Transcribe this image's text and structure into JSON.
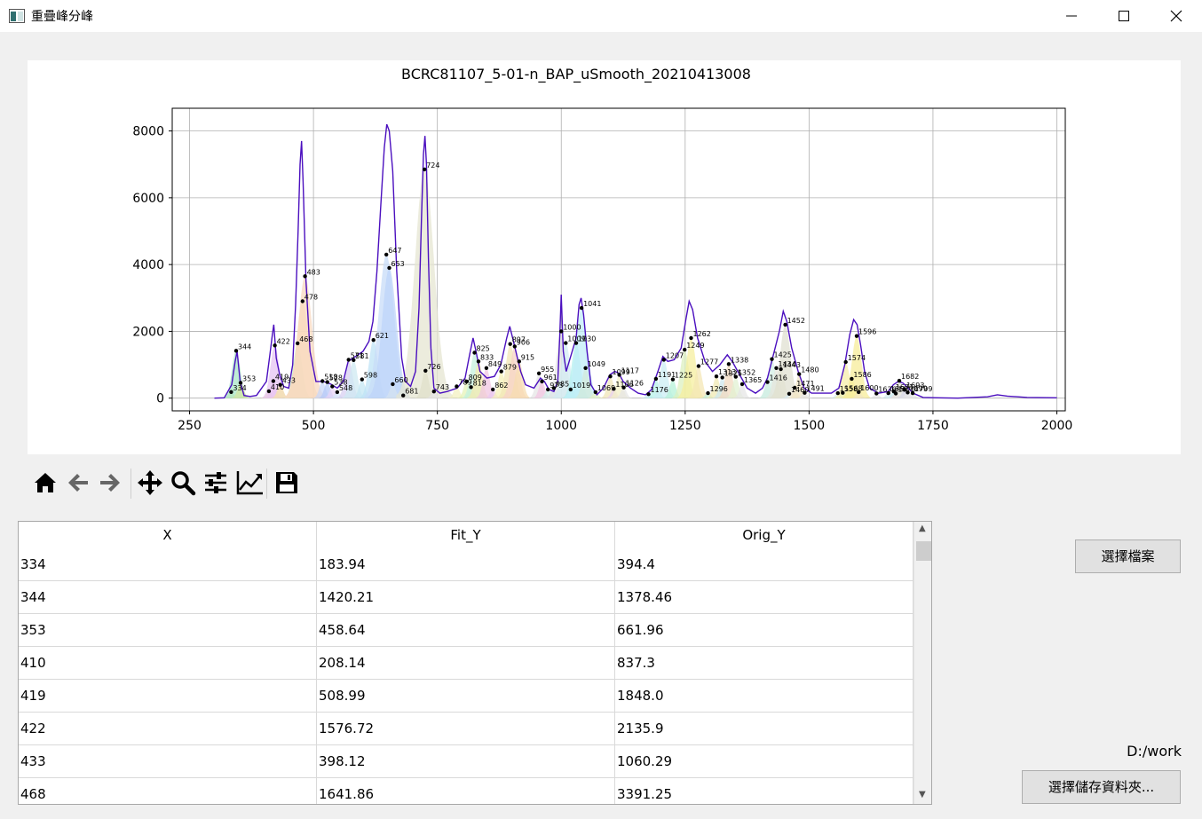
{
  "window": {
    "title": "重疊峰分峰",
    "icon": "app-window-icon",
    "controls": [
      "minimize-icon",
      "maximize-icon",
      "close-icon"
    ]
  },
  "plot": {
    "title": "BCRC81107_5-01-n_BAP_uSmooth_20210413008",
    "xlim": [
      215,
      2017
    ],
    "ylim": [
      -380,
      8680
    ],
    "xticks": [
      250,
      500,
      750,
      1000,
      1250,
      1500,
      1750,
      2000
    ],
    "yticks": [
      0,
      2000,
      4000,
      6000,
      8000
    ],
    "grid": true,
    "curve_color": "#4b0fbf",
    "spectrum": [
      [
        300,
        0
      ],
      [
        320,
        10
      ],
      [
        335,
        400
      ],
      [
        342,
        1100
      ],
      [
        346,
        1400
      ],
      [
        352,
        500
      ],
      [
        360,
        80
      ],
      [
        372,
        50
      ],
      [
        385,
        80
      ],
      [
        405,
        500
      ],
      [
        412,
        1300
      ],
      [
        417,
        1900
      ],
      [
        420,
        2200
      ],
      [
        425,
        1200
      ],
      [
        432,
        700
      ],
      [
        440,
        350
      ],
      [
        450,
        300
      ],
      [
        458,
        1000
      ],
      [
        464,
        2800
      ],
      [
        469,
        5000
      ],
      [
        473,
        7000
      ],
      [
        476,
        7700
      ],
      [
        479,
        6500
      ],
      [
        485,
        3500
      ],
      [
        493,
        1400
      ],
      [
        505,
        500
      ],
      [
        520,
        500
      ],
      [
        535,
        420
      ],
      [
        548,
        300
      ],
      [
        560,
        500
      ],
      [
        570,
        1100
      ],
      [
        580,
        1200
      ],
      [
        590,
        1300
      ],
      [
        600,
        1400
      ],
      [
        612,
        1700
      ],
      [
        620,
        2300
      ],
      [
        628,
        3800
      ],
      [
        636,
        5800
      ],
      [
        643,
        7500
      ],
      [
        648,
        8200
      ],
      [
        653,
        8000
      ],
      [
        660,
        6800
      ],
      [
        668,
        3800
      ],
      [
        678,
        1200
      ],
      [
        686,
        500
      ],
      [
        696,
        350
      ],
      [
        706,
        800
      ],
      [
        713,
        2700
      ],
      [
        718,
        5400
      ],
      [
        722,
        7300
      ],
      [
        725,
        7850
      ],
      [
        728,
        7000
      ],
      [
        732,
        4200
      ],
      [
        737,
        1500
      ],
      [
        743,
        300
      ],
      [
        755,
        150
      ],
      [
        770,
        200
      ],
      [
        790,
        300
      ],
      [
        806,
        600
      ],
      [
        815,
        1300
      ],
      [
        822,
        1800
      ],
      [
        828,
        1400
      ],
      [
        836,
        800
      ],
      [
        850,
        600
      ],
      [
        865,
        650
      ],
      [
        878,
        1000
      ],
      [
        890,
        1800
      ],
      [
        896,
        2150
      ],
      [
        902,
        1800
      ],
      [
        910,
        1300
      ],
      [
        918,
        800
      ],
      [
        928,
        400
      ],
      [
        945,
        300
      ],
      [
        958,
        600
      ],
      [
        966,
        500
      ],
      [
        975,
        260
      ],
      [
        985,
        200
      ],
      [
        993,
        500
      ],
      [
        997,
        1900
      ],
      [
        1000,
        3100
      ],
      [
        1004,
        1400
      ],
      [
        1010,
        800
      ],
      [
        1020,
        1300
      ],
      [
        1030,
        1800
      ],
      [
        1036,
        2800
      ],
      [
        1040,
        3000
      ],
      [
        1045,
        2500
      ],
      [
        1052,
        1400
      ],
      [
        1060,
        400
      ],
      [
        1072,
        100
      ],
      [
        1085,
        300
      ],
      [
        1098,
        700
      ],
      [
        1108,
        800
      ],
      [
        1116,
        750
      ],
      [
        1125,
        500
      ],
      [
        1140,
        300
      ],
      [
        1155,
        150
      ],
      [
        1170,
        100
      ],
      [
        1182,
        250
      ],
      [
        1195,
        800
      ],
      [
        1205,
        1250
      ],
      [
        1215,
        1100
      ],
      [
        1228,
        1150
      ],
      [
        1242,
        1500
      ],
      [
        1252,
        2400
      ],
      [
        1258,
        2900
      ],
      [
        1265,
        2650
      ],
      [
        1275,
        1800
      ],
      [
        1290,
        1100
      ],
      [
        1305,
        800
      ],
      [
        1320,
        1000
      ],
      [
        1335,
        1300
      ],
      [
        1345,
        1100
      ],
      [
        1360,
        700
      ],
      [
        1375,
        300
      ],
      [
        1392,
        150
      ],
      [
        1406,
        300
      ],
      [
        1416,
        600
      ],
      [
        1428,
        1300
      ],
      [
        1440,
        2000
      ],
      [
        1448,
        2600
      ],
      [
        1455,
        2300
      ],
      [
        1465,
        1500
      ],
      [
        1478,
        800
      ],
      [
        1490,
        300
      ],
      [
        1505,
        150
      ],
      [
        1525,
        150
      ],
      [
        1545,
        150
      ],
      [
        1560,
        300
      ],
      [
        1572,
        1000
      ],
      [
        1582,
        1900
      ],
      [
        1590,
        2350
      ],
      [
        1597,
        2200
      ],
      [
        1604,
        1600
      ],
      [
        1612,
        800
      ],
      [
        1622,
        300
      ],
      [
        1640,
        150
      ],
      [
        1660,
        200
      ],
      [
        1670,
        400
      ],
      [
        1680,
        500
      ],
      [
        1690,
        450
      ],
      [
        1700,
        300
      ],
      [
        1710,
        150
      ],
      [
        1730,
        20
      ],
      [
        1760,
        10
      ],
      [
        1800,
        0
      ],
      [
        1860,
        40
      ],
      [
        1880,
        100
      ],
      [
        1900,
        60
      ],
      [
        1940,
        20
      ],
      [
        2000,
        10
      ]
    ],
    "peaks": [
      [
        334,
        184,
        "#e2e8a6"
      ],
      [
        344,
        1420,
        "#a8e6c7"
      ],
      [
        353,
        459,
        "#d3e6a0"
      ],
      [
        410,
        208,
        "#f6e9a1"
      ],
      [
        419,
        509,
        "#f2c6e8"
      ],
      [
        422,
        1577,
        "#e5c4f3"
      ],
      [
        433,
        398,
        "#f5e3a5"
      ],
      [
        468,
        1642,
        "#b9f0c9"
      ],
      [
        478,
        2900,
        "#f8ddb5"
      ],
      [
        483,
        3650,
        "#f8d8c0"
      ],
      [
        518,
        510,
        "#c9d7f8"
      ],
      [
        528,
        480,
        "#b5c8f7"
      ],
      [
        538,
        350,
        "#e7d3f5"
      ],
      [
        548,
        180,
        "#d4e7f9"
      ],
      [
        571,
        1150,
        "#d8d0f1"
      ],
      [
        581,
        1140,
        "#cfe9f1"
      ],
      [
        598,
        560,
        "#c4e7f3"
      ],
      [
        621,
        1740,
        "#bfe3f5"
      ],
      [
        647,
        4300,
        "#c8dcf8"
      ],
      [
        653,
        3900,
        "#bed4f9"
      ],
      [
        660,
        420,
        "#d4e2f0"
      ],
      [
        681,
        80,
        "#e6e6e6"
      ],
      [
        724,
        6850,
        "#e6e6d2"
      ],
      [
        726,
        820,
        "#e0e0c9"
      ],
      [
        743,
        200,
        "#e6e6e6"
      ],
      [
        789,
        350,
        "#f3f0c0"
      ],
      [
        809,
        500,
        "#e6f3b8"
      ],
      [
        818,
        330,
        "#d4f0c6"
      ],
      [
        825,
        1360,
        "#c6f2de"
      ],
      [
        833,
        1100,
        "#f4e9b0"
      ],
      [
        849,
        900,
        "#f0c6e2"
      ],
      [
        862,
        260,
        "#e9c8f0"
      ],
      [
        879,
        800,
        "#f6f2b8"
      ],
      [
        897,
        1620,
        "#f1e5b5"
      ],
      [
        906,
        1550,
        "#f7d3c7"
      ],
      [
        915,
        1100,
        "#f7dcb0"
      ],
      [
        955,
        740,
        "#e6e6e6"
      ],
      [
        961,
        500,
        "#f3c7e3"
      ],
      [
        973,
        260,
        "#d2f0ea"
      ],
      [
        985,
        300,
        "#c7ecf7"
      ],
      [
        1000,
        2000,
        "#e6e6e6"
      ],
      [
        1009,
        1650,
        "#d3ecf3"
      ],
      [
        1019,
        260,
        "#c0f3f1"
      ],
      [
        1030,
        1650,
        "#b4f0ef"
      ],
      [
        1041,
        2700,
        "#c2edf8"
      ],
      [
        1049,
        900,
        "#d2eadb"
      ],
      [
        1069,
        180,
        "#e5f1c3"
      ],
      [
        1099,
        650,
        "#f0e6b8"
      ],
      [
        1106,
        280,
        "#e9d2f0"
      ],
      [
        1117,
        700,
        "#f3f0c5"
      ],
      [
        1126,
        320,
        "#e6e6e6"
      ],
      [
        1176,
        120,
        "#c9ecf5"
      ],
      [
        1191,
        580,
        "#b7f2ea"
      ],
      [
        1207,
        1150,
        "#ccedf4"
      ],
      [
        1225,
        560,
        "#b5f2d8"
      ],
      [
        1249,
        1450,
        "#dcf0c0"
      ],
      [
        1262,
        1800,
        "#f6ef9f"
      ],
      [
        1277,
        960,
        "#f4e7b5"
      ],
      [
        1296,
        150,
        "#c3efd9"
      ],
      [
        1313,
        650,
        "#f0e9b4"
      ],
      [
        1325,
        620,
        "#cfe8ef"
      ],
      [
        1338,
        1020,
        "#f2d9c0"
      ],
      [
        1352,
        640,
        "#e2f1d3"
      ],
      [
        1365,
        420,
        "#e6e6e6"
      ],
      [
        1416,
        480,
        "#c5ecdd"
      ],
      [
        1425,
        1170,
        "#d4efe6"
      ],
      [
        1434,
        900,
        "#e5e5dc"
      ],
      [
        1443,
        870,
        "#e8e8d4"
      ],
      [
        1452,
        2200,
        "#e0e0d1"
      ],
      [
        1460,
        130,
        "#d7ecf5"
      ],
      [
        1471,
        310,
        "#f4e9d5"
      ],
      [
        1480,
        720,
        "#f0e6c5"
      ],
      [
        1491,
        160,
        "#e6e6e6"
      ],
      [
        1558,
        150,
        "#d5eef2"
      ],
      [
        1568,
        160,
        "#c8efd7"
      ],
      [
        1574,
        1080,
        "#f6eeaa"
      ],
      [
        1586,
        580,
        "#f8f2a7"
      ],
      [
        1596,
        1860,
        "#f7ec9a"
      ],
      [
        1600,
        180,
        "#f2e6c3"
      ],
      [
        1636,
        140,
        "#e6e6e6"
      ],
      [
        1660,
        150,
        "#d6ecf0"
      ],
      [
        1671,
        200,
        "#c9ecf2"
      ],
      [
        1675,
        140,
        "#f0d6ea"
      ],
      [
        1682,
        520,
        "#e4e4d8"
      ],
      [
        1693,
        260,
        "#d8d8e8"
      ],
      [
        1699,
        170,
        "#e6e6e6"
      ],
      [
        1709,
        150,
        "#e6e6e6"
      ]
    ]
  },
  "toolbar": [
    "home-icon",
    "back-icon",
    "forward-icon",
    "pan-icon",
    "zoom-icon",
    "configure-subplots-icon",
    "edit-axis-icon",
    "save-icon"
  ],
  "table": {
    "headers": [
      "X",
      "Fit_Y",
      "Orig_Y"
    ],
    "rows": [
      [
        "334",
        "183.94",
        "394.4"
      ],
      [
        "344",
        "1420.21",
        "1378.46"
      ],
      [
        "353",
        "458.64",
        "661.96"
      ],
      [
        "410",
        "208.14",
        "837.3"
      ],
      [
        "419",
        "508.99",
        "1848.0"
      ],
      [
        "422",
        "1576.72",
        "2135.9"
      ],
      [
        "433",
        "398.12",
        "1060.29"
      ],
      [
        "468",
        "1641.86",
        "3391.25"
      ]
    ]
  },
  "buttons": {
    "select_file": "選擇檔案",
    "select_folder": "選擇儲存資料夾..."
  },
  "save_path": "D:/work"
}
